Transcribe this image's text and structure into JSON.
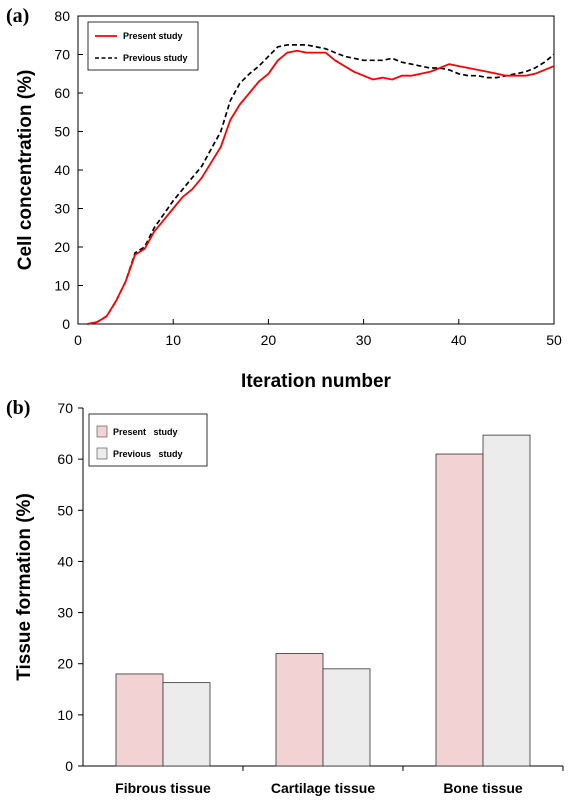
{
  "chart_data": [
    {
      "panel_label": "(a)",
      "type": "line",
      "xlabel": "Iteration number",
      "ylabel": "Cell concentration (%)",
      "xlim": [
        0,
        50
      ],
      "ylim": [
        0,
        80
      ],
      "xticks": [
        0,
        10,
        20,
        30,
        40,
        50
      ],
      "yticks": [
        0,
        10,
        20,
        30,
        40,
        50,
        60,
        70,
        80
      ],
      "grid": false,
      "legend_position": "top-left",
      "series": [
        {
          "name": "Present study",
          "color": "#ff0000",
          "style": "solid",
          "x": [
            1,
            2,
            3,
            4,
            5,
            6,
            7,
            8,
            9,
            10,
            11,
            12,
            13,
            14,
            15,
            16,
            17,
            18,
            19,
            20,
            21,
            22,
            23,
            24,
            25,
            26,
            27,
            28,
            29,
            30,
            31,
            32,
            33,
            34,
            35,
            36,
            37,
            38,
            39,
            40,
            41,
            42,
            43,
            44,
            45,
            46,
            47,
            48,
            49,
            50
          ],
          "y": [
            0,
            0.5,
            2,
            6,
            11,
            18,
            19.5,
            24,
            27,
            30,
            33,
            35,
            38,
            42,
            46,
            53,
            57,
            60,
            63,
            65,
            68.5,
            70.5,
            71,
            70.5,
            70.5,
            70.5,
            68.5,
            67,
            65.5,
            64.5,
            63.5,
            64,
            63.5,
            64.5,
            64.5,
            65,
            65.5,
            66.5,
            67.5,
            67,
            66.5,
            66,
            65.5,
            65,
            64.5,
            64.5,
            64.5,
            65,
            66,
            67
          ]
        },
        {
          "name": "Previous study",
          "color": "#000000",
          "style": "dashed",
          "x": [
            1,
            2,
            3,
            4,
            5,
            6,
            7,
            8,
            9,
            10,
            11,
            12,
            13,
            14,
            15,
            16,
            17,
            18,
            19,
            20,
            21,
            22,
            23,
            24,
            25,
            26,
            27,
            28,
            29,
            30,
            31,
            32,
            33,
            34,
            35,
            36,
            37,
            38,
            39,
            40,
            41,
            42,
            43,
            44,
            45,
            46,
            47,
            48,
            49,
            50
          ],
          "y": [
            0,
            0.5,
            2,
            6,
            11,
            18.5,
            20,
            25,
            28.5,
            32,
            35,
            38,
            41,
            45.5,
            50,
            58,
            62.5,
            65,
            67,
            69.5,
            72,
            72.5,
            72.5,
            72.5,
            72,
            71.5,
            70.5,
            69.5,
            69,
            68.5,
            68.5,
            68.5,
            69,
            68,
            67.5,
            67,
            66.5,
            66.5,
            66,
            65,
            64.5,
            64.5,
            64,
            64,
            64.5,
            65,
            65.5,
            66.5,
            68,
            70
          ]
        }
      ]
    },
    {
      "panel_label": "(b)",
      "type": "bar",
      "xlabel": "",
      "ylabel": "Tissue formation (%)",
      "ylim": [
        0,
        70
      ],
      "yticks": [
        0,
        10,
        20,
        30,
        40,
        50,
        60,
        70
      ],
      "grid": false,
      "legend_position": "top-left",
      "categories": [
        "Fibrous tissue",
        "Cartilage tissue",
        "Bone tissue"
      ],
      "series": [
        {
          "name": "Present   study",
          "color": "#f2d2d2",
          "values": [
            18,
            22,
            61
          ]
        },
        {
          "name": "Previous   study",
          "color": "#ececec",
          "values": [
            16.3,
            19,
            64.7
          ]
        }
      ]
    }
  ]
}
